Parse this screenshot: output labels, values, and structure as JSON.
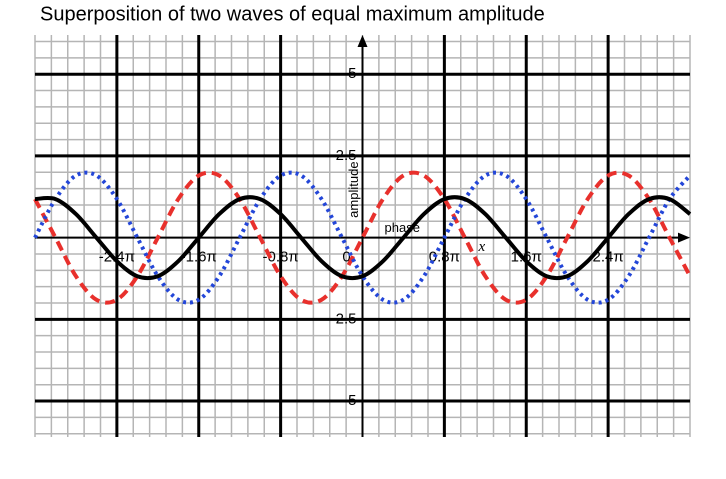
{
  "chart_data": {
    "type": "line",
    "title": "Superposition of two waves of equal maximum amplitude",
    "y_label": "amplitude",
    "x_label": "phase",
    "x_variable": "x",
    "x": [
      -3.2,
      -3.0,
      -2.8,
      -2.6,
      -2.4,
      -2.2,
      -2.0,
      -1.8,
      -1.6,
      -1.4,
      -1.2,
      -1.0,
      -0.8,
      -0.6,
      -0.4,
      -0.2,
      0,
      0.2,
      0.4,
      0.6,
      0.8,
      1.0,
      1.2,
      1.4,
      1.6,
      1.8,
      2.0,
      2.2,
      2.4,
      2.6,
      2.8,
      3.0,
      3.2
    ],
    "series": [
      {
        "color": "#e8302c",
        "dash": "dashed",
        "values": [
          1.18,
          0,
          -1.18,
          -1.9,
          -1.9,
          -1.18,
          0,
          1.18,
          1.9,
          1.9,
          1.18,
          0,
          -1.18,
          -1.9,
          -1.9,
          -1.18,
          0,
          1.18,
          1.9,
          1.9,
          1.18,
          0,
          -1.18,
          -1.9,
          -1.9,
          -1.18,
          0,
          1.18,
          1.9,
          1.9,
          1.18,
          0,
          -1.18
        ]
      },
      {
        "color": "#2346d8",
        "dash": "dotted",
        "values": [
          0,
          1.18,
          1.9,
          1.9,
          1.18,
          0,
          -1.18,
          -1.9,
          -1.9,
          -1.18,
          0,
          1.18,
          1.9,
          1.9,
          1.18,
          0,
          -1.18,
          -1.9,
          -1.9,
          -1.18,
          0,
          1.18,
          1.9,
          1.9,
          1.18,
          0,
          -1.18,
          -1.9,
          -1.9,
          -1.18,
          0,
          1.18,
          1.9
        ]
      },
      {
        "color": "#000000",
        "dash": "solid",
        "values": [
          1.18,
          1.18,
          0.72,
          0,
          -0.72,
          -1.18,
          -1.18,
          -0.72,
          0,
          0.72,
          1.18,
          1.18,
          0.72,
          0,
          -0.72,
          -1.18,
          -1.18,
          -0.72,
          0,
          0.72,
          1.18,
          1.18,
          0.72,
          0,
          -0.72,
          -1.18,
          -1.18,
          -0.72,
          0,
          0.72,
          1.18,
          1.18,
          0.72
        ]
      }
    ],
    "xlim": [
      -3.2,
      3.2
    ],
    "ylim": [
      -6.1,
      6.2
    ],
    "xticks": [
      {
        "value": -2.4,
        "label": "-2.4π"
      },
      {
        "value": -1.6,
        "label": "-1.6π"
      },
      {
        "value": -0.8,
        "label": "-0.8π"
      },
      0,
      {
        "value": 0.8,
        "label": "0.8π"
      },
      {
        "value": 1.6,
        "label": "1.6π"
      },
      {
        "value": 2.4,
        "label": "2.4π"
      }
    ],
    "yticks": [
      -5,
      -2.5,
      2.5,
      5
    ],
    "grid": true,
    "minor_grid": true
  }
}
